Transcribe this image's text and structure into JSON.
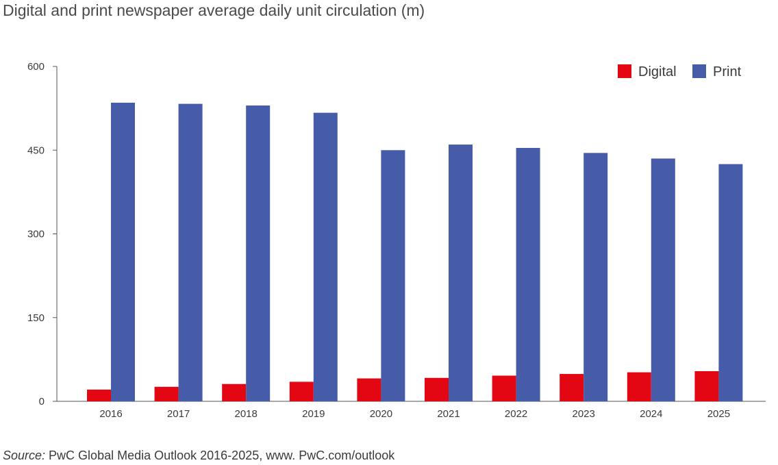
{
  "title": "Digital and print newspaper average daily unit circulation (m)",
  "source": {
    "label": "Source:",
    "text": " PwC Global Media Outlook 2016-2025, www. PwC.com/outlook"
  },
  "colors": {
    "digital": "#e30613",
    "print": "#465ca8",
    "axis": "#555555"
  },
  "chart_data": {
    "type": "bar",
    "title": "Digital and print newspaper average daily unit circulation (m)",
    "xlabel": "",
    "ylabel": "",
    "categories": [
      "2016",
      "2017",
      "2018",
      "2019",
      "2020",
      "2021",
      "2022",
      "2023",
      "2024",
      "2025"
    ],
    "series": [
      {
        "name": "Digital",
        "values": [
          21,
          26,
          31,
          35,
          41,
          42,
          46,
          49,
          52,
          54
        ]
      },
      {
        "name": "Print",
        "values": [
          535,
          533,
          530,
          517,
          450,
          460,
          454,
          445,
          435,
          425
        ]
      }
    ],
    "ylim": [
      0,
      600
    ],
    "yticks": [
      0,
      150,
      300,
      450,
      600
    ],
    "grid": false,
    "legend_position": "top-right"
  }
}
